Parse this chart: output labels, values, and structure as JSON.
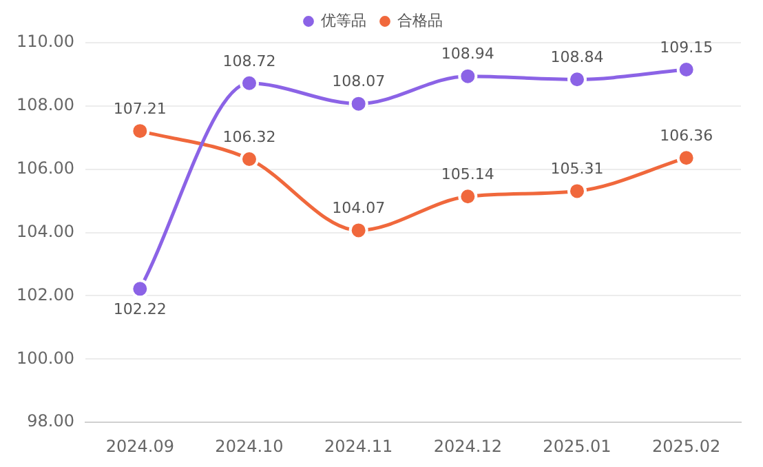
{
  "chart_data": {
    "type": "line",
    "categories": [
      "2024.09",
      "2024.10",
      "2024.11",
      "2024.12",
      "2025.01",
      "2025.02"
    ],
    "series": [
      {
        "name": "优等品",
        "color": "#8b63e6",
        "values": [
          102.22,
          108.72,
          108.07,
          108.94,
          108.84,
          109.15
        ]
      },
      {
        "name": "合格品",
        "color": "#f0683c",
        "values": [
          107.21,
          106.32,
          104.07,
          105.14,
          105.31,
          106.36
        ]
      }
    ],
    "ylim": [
      98,
      110
    ],
    "yticks": [
      {
        "value": 98,
        "label": "98.00"
      },
      {
        "value": 100,
        "label": "100.00"
      },
      {
        "value": 102,
        "label": "102.00"
      },
      {
        "value": 104,
        "label": "104.00"
      },
      {
        "value": 106,
        "label": "106.00"
      },
      {
        "value": 108,
        "label": "108.00"
      },
      {
        "value": 110,
        "label": "110.00"
      }
    ],
    "grid": "y",
    "legend": "top",
    "marker": "circle",
    "line_style": "solid",
    "data_labels": true
  }
}
